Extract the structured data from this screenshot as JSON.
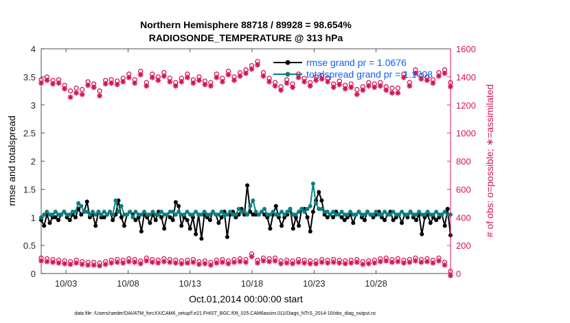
{
  "chart_data": {
    "type": "line",
    "title": "Northern Hemisphere 88718 / 89928 = 98.654%",
    "subtitle": "RADIOSONDE_TEMPERATURE @ 313 hPa",
    "ylabel": "rmse and totalspread",
    "y2label": "# of obs: o=possible; ∗=assimilated",
    "xlabel": "Oct.01,2014 00:00:00 start",
    "footnote": "data file: /Users/raeder/DAI/ATM_forcXX/CAM6_setup/f.e21.FHIST_BGC.f09_025.CAM6assim.011/Diags_NTrS_2014-10/obs_diag_output.nc",
    "xlim": [
      1,
      34
    ],
    "ylim": [
      0,
      4
    ],
    "y2lim": [
      0,
      1600
    ],
    "x_ticks": [
      3,
      8,
      13,
      18,
      23,
      28
    ],
    "x_tick_labels": [
      "10/03",
      "10/08",
      "10/13",
      "10/18",
      "10/23",
      "10/28"
    ],
    "y_ticks": [
      "0",
      "0.5",
      "1",
      "1.5",
      "2",
      "2.5",
      "3",
      "3.5",
      "4"
    ],
    "y2_ticks": [
      "0",
      "200",
      "400",
      "600",
      "800",
      "1000",
      "1200",
      "1400",
      "1600"
    ],
    "legend": [
      {
        "label": "rmse grand pr = 1.0676",
        "color": "#000000"
      },
      {
        "label": "totalspread grand pr = 1.1008",
        "color": "#0a7f7f"
      }
    ],
    "series": [
      {
        "name": "rmse",
        "color": "#000000",
        "axis": "left",
        "values": [
          0.95,
          0.85,
          1.05,
          0.9,
          1.0,
          1.0,
          0.95,
          1.05,
          1.1,
          1.0,
          0.95,
          1.05,
          1.0,
          1.15,
          1.05,
          1.1,
          1.28,
          1.0,
          1.05,
          0.85,
          1.1,
          1.0,
          1.0,
          1.05,
          1.1,
          0.95,
          1.05,
          1.3,
          1.0,
          0.85,
          1.05,
          1.1,
          1.05,
          0.95,
          1.0,
          0.75,
          1.05,
          1.0,
          0.9,
          1.05,
          0.95,
          1.1,
          1.0,
          0.8,
          1.05,
          1.0,
          0.95,
          1.27,
          1.2,
          0.85,
          1.0,
          0.95,
          0.8,
          1.0,
          0.7,
          1.05,
          0.62,
          1.05,
          1.0,
          0.95,
          1.1,
          1.05,
          0.9,
          1.0,
          1.1,
          0.65,
          1.05,
          1.1,
          1.0,
          1.05,
          1.15,
          1.05,
          1.57,
          1.1,
          1.05,
          1.05,
          1.05,
          1.1,
          1.05,
          1.0,
          0.8,
          1.05,
          1.2,
          1.0,
          0.85,
          1.0,
          1.05,
          1.15,
          0.8,
          1.0,
          0.85,
          1.15,
          1.15,
          1.0,
          0.75,
          1.1,
          1.3,
          1.45,
          1.3,
          1.05,
          1.0,
          1.05,
          1.0,
          1.1,
          1.05,
          1.0,
          0.95,
          1.0,
          1.05,
          0.9,
          1.05,
          1.1,
          1.0,
          0.95,
          1.1,
          1.05,
          1.0,
          1.05,
          1.1,
          1.0,
          0.95,
          1.05,
          1.1,
          0.95,
          1.0,
          1.05,
          0.9,
          1.05,
          1.0,
          1.1,
          1.0,
          0.95,
          1.05,
          0.7,
          1.0,
          1.05,
          0.9,
          1.0,
          0.95,
          1.0,
          1.05,
          0.85,
          1.15,
          0.68
        ]
      },
      {
        "name": "totalspread",
        "color": "#0a7f7f",
        "axis": "left",
        "values": [
          1.0,
          1.05,
          1.1,
          1.05,
          1.05,
          1.1,
          1.05,
          1.05,
          1.1,
          1.05,
          1.05,
          1.1,
          1.1,
          1.25,
          1.2,
          1.1,
          1.1,
          1.05,
          1.1,
          1.05,
          1.1,
          1.05,
          1.1,
          1.05,
          1.1,
          1.05,
          1.3,
          1.1,
          1.2,
          1.05,
          1.05,
          1.1,
          1.0,
          1.1,
          1.05,
          1.05,
          1.1,
          1.05,
          1.05,
          1.1,
          1.05,
          1.05,
          1.1,
          1.05,
          1.05,
          1.1,
          1.1,
          1.05,
          1.1,
          1.05,
          1.05,
          1.1,
          1.05,
          1.05,
          1.1,
          1.05,
          1.05,
          1.1,
          1.05,
          1.05,
          1.1,
          1.05,
          1.05,
          1.1,
          1.05,
          1.05,
          1.1,
          1.05,
          1.05,
          1.15,
          1.1,
          1.1,
          1.05,
          1.2,
          1.3,
          1.1,
          1.05,
          1.1,
          1.15,
          1.05,
          1.05,
          1.1,
          1.05,
          1.05,
          1.1,
          1.05,
          1.1,
          1.15,
          1.05,
          1.05,
          1.1,
          1.15,
          1.1,
          1.15,
          1.2,
          1.6,
          1.25,
          1.15,
          1.15,
          1.1,
          1.1,
          1.05,
          1.1,
          1.05,
          1.05,
          1.1,
          1.05,
          1.05,
          1.1,
          1.05,
          1.05,
          1.1,
          1.05,
          1.05,
          1.1,
          1.05,
          1.05,
          1.1,
          1.05,
          1.05,
          1.1,
          1.05,
          1.05,
          1.1,
          1.05,
          1.05,
          1.1,
          1.05,
          1.05,
          1.1,
          1.05,
          1.05,
          1.1,
          1.05,
          1.05,
          1.1,
          1.05,
          1.05,
          1.1,
          1.05,
          1.05,
          1.1,
          1.05,
          1.05
        ]
      },
      {
        "name": "obs possible (top)",
        "color": "#d4145a",
        "axis": "right",
        "marker": "o",
        "values": [
          1380,
          1400,
          1375,
          1380,
          1340,
          1300,
          1320,
          1310,
          1365,
          1350,
          1300,
          1375,
          1380,
          1370,
          1390,
          1420,
          1380,
          1440,
          1360,
          1420,
          1400,
          1430,
          1390,
          1360,
          1390,
          1420,
          1380,
          1400,
          1370,
          1360,
          1420,
          1390,
          1440,
          1400,
          1430,
          1450,
          1480,
          1510,
          1430,
          1390,
          1360,
          1330,
          1380,
          1350,
          1420,
          1390,
          1360,
          1400,
          1410,
          1390,
          1350,
          1370,
          1340,
          1350,
          1310,
          1330,
          1360,
          1350,
          1360,
          1330,
          1320,
          1320,
          1420,
          1360,
          1450,
          1410,
          1400,
          1380,
          1430,
          1450,
          1360
        ]
      },
      {
        "name": "obs assimilated (top)",
        "color": "#d4145a",
        "axis": "right",
        "marker": "*",
        "values": [
          1370,
          1390,
          1365,
          1370,
          1330,
          1270,
          1300,
          1290,
          1355,
          1340,
          1280,
          1365,
          1370,
          1360,
          1380,
          1410,
          1370,
          1430,
          1350,
          1410,
          1390,
          1420,
          1380,
          1350,
          1380,
          1410,
          1370,
          1390,
          1360,
          1350,
          1410,
          1380,
          1430,
          1390,
          1420,
          1440,
          1470,
          1500,
          1420,
          1380,
          1350,
          1320,
          1370,
          1340,
          1410,
          1380,
          1350,
          1390,
          1400,
          1380,
          1340,
          1360,
          1330,
          1340,
          1290,
          1320,
          1350,
          1340,
          1350,
          1320,
          1300,
          1300,
          1410,
          1350,
          1440,
          1400,
          1390,
          1370,
          1420,
          1440,
          1345
        ]
      },
      {
        "name": "obs possible (bottom)",
        "color": "#d4145a",
        "axis": "right",
        "marker": "o",
        "values": [
          110,
          105,
          100,
          95,
          90,
          85,
          95,
          85,
          80,
          80,
          75,
          85,
          95,
          100,
          95,
          105,
          100,
          90,
          110,
          100,
          95,
          105,
          100,
          95,
          90,
          95,
          100,
          85,
          90,
          80,
          95,
          100,
          90,
          100,
          105,
          100,
          140,
          95,
          110,
          105,
          110,
          90,
          95,
          90,
          100,
          95,
          90,
          90,
          100,
          95,
          100,
          95,
          90,
          95,
          100,
          85,
          90,
          95,
          105,
          110,
          100,
          105,
          95,
          100,
          110,
          100,
          105,
          95,
          110,
          80,
          15
        ]
      },
      {
        "name": "obs assimilated (bottom)",
        "color": "#d4145a",
        "axis": "right",
        "marker": "*",
        "values": [
          105,
          100,
          95,
          90,
          85,
          80,
          90,
          80,
          75,
          75,
          70,
          80,
          90,
          95,
          90,
          100,
          95,
          85,
          105,
          95,
          90,
          100,
          95,
          90,
          85,
          90,
          95,
          80,
          85,
          75,
          90,
          95,
          85,
          95,
          100,
          95,
          135,
          90,
          105,
          100,
          105,
          85,
          90,
          85,
          95,
          90,
          85,
          85,
          95,
          90,
          95,
          90,
          85,
          90,
          95,
          80,
          85,
          90,
          100,
          105,
          95,
          100,
          90,
          95,
          105,
          95,
          100,
          90,
          105,
          75,
          0
        ]
      }
    ]
  }
}
